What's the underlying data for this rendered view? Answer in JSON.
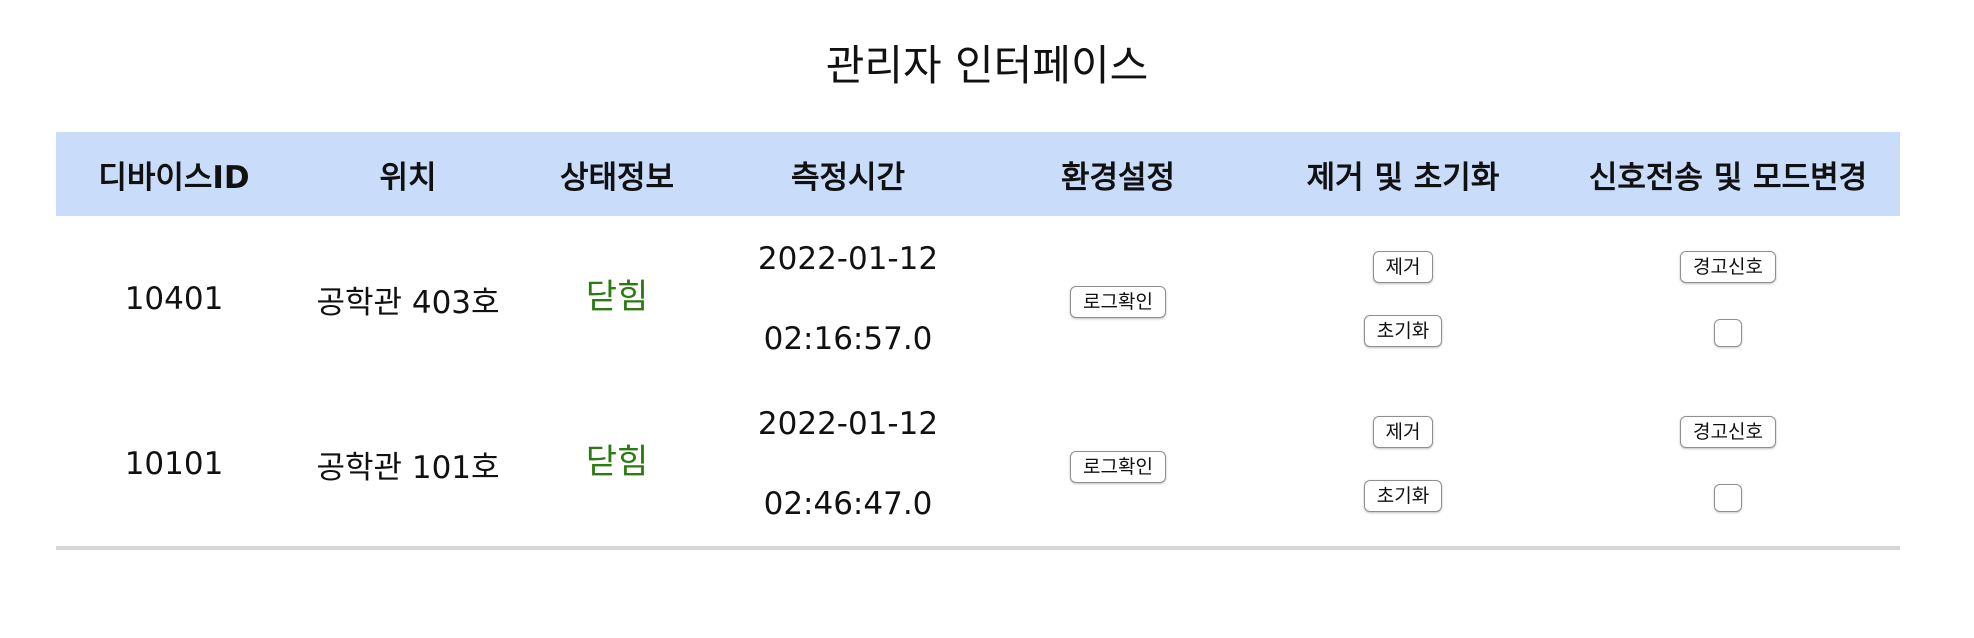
{
  "page": {
    "title": "관리자 인터페이스"
  },
  "table": {
    "headers": {
      "device_id": "디바이스ID",
      "location": "위치",
      "status": "상태정보",
      "measured_time": "측정시간",
      "settings": "환경설정",
      "remove_reset": "제거 및 초기화",
      "signal_mode": "신호전송 및 모드변경"
    },
    "rows": [
      {
        "device_id": "10401",
        "location": "공학관 403호",
        "status": "닫힘",
        "date": "2022-01-12",
        "time": "02:16:57.0",
        "log_button": "로그확인",
        "remove_button": "제거",
        "reset_button": "초기화",
        "warning_button": "경고신호",
        "mode_checked": false
      },
      {
        "device_id": "10101",
        "location": "공학관 101호",
        "status": "닫힘",
        "date": "2022-01-12",
        "time": "02:46:47.0",
        "log_button": "로그확인",
        "remove_button": "제거",
        "reset_button": "초기화",
        "warning_button": "경고신호",
        "mode_checked": false
      }
    ]
  },
  "colors": {
    "header_bg": "#c9dcfa",
    "status_closed": "#2c7a11",
    "divider": "#d6d6d6"
  }
}
